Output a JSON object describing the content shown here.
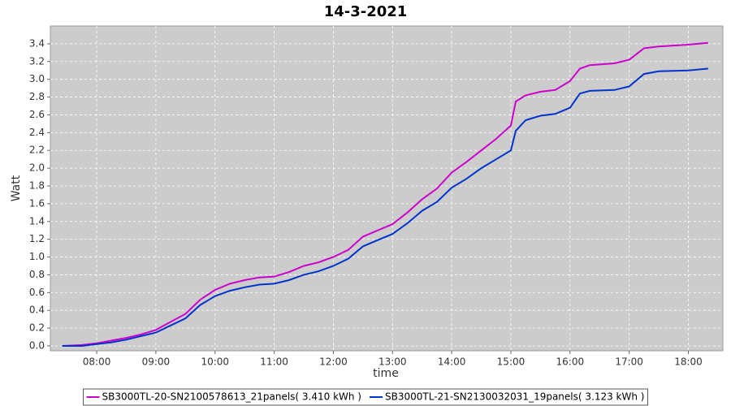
{
  "chart_data": {
    "type": "line",
    "title": "14-3-2021",
    "x_label": "time",
    "y_label": "Watt",
    "x": [
      "07:25",
      "07:45",
      "08:00",
      "08:15",
      "08:30",
      "08:45",
      "09:00",
      "09:15",
      "09:30",
      "09:45",
      "10:00",
      "10:15",
      "10:30",
      "10:45",
      "11:00",
      "11:15",
      "11:30",
      "11:45",
      "12:00",
      "12:15",
      "12:30",
      "12:45",
      "13:00",
      "13:15",
      "13:30",
      "13:45",
      "14:00",
      "14:15",
      "14:30",
      "14:45",
      "15:00",
      "15:05",
      "15:15",
      "15:30",
      "15:45",
      "16:00",
      "16:10",
      "16:20",
      "16:45",
      "17:00",
      "17:15",
      "17:30",
      "18:00",
      "18:20"
    ],
    "series": [
      {
        "name": "SB3000TL-20-SN2100578613_21panels( 3.410 kWh )",
        "color": "#cc00cc",
        "values": [
          0.0,
          0.01,
          0.03,
          0.06,
          0.09,
          0.13,
          0.18,
          0.27,
          0.36,
          0.52,
          0.63,
          0.7,
          0.74,
          0.77,
          0.78,
          0.83,
          0.9,
          0.94,
          1.0,
          1.08,
          1.23,
          1.3,
          1.37,
          1.5,
          1.65,
          1.77,
          1.95,
          2.07,
          2.2,
          2.33,
          2.48,
          2.75,
          2.82,
          2.86,
          2.88,
          2.98,
          3.12,
          3.16,
          3.18,
          3.22,
          3.35,
          3.37,
          3.39,
          3.41
        ]
      },
      {
        "name": "SB3000TL-21-SN2130032031_19panels( 3.123 kWh )",
        "color": "#0033cc",
        "values": [
          0.0,
          0.0,
          0.02,
          0.04,
          0.07,
          0.11,
          0.15,
          0.23,
          0.31,
          0.46,
          0.56,
          0.62,
          0.66,
          0.69,
          0.7,
          0.74,
          0.8,
          0.84,
          0.9,
          0.98,
          1.12,
          1.19,
          1.26,
          1.38,
          1.52,
          1.62,
          1.78,
          1.88,
          2.0,
          2.1,
          2.2,
          2.42,
          2.54,
          2.59,
          2.61,
          2.68,
          2.84,
          2.87,
          2.88,
          2.92,
          3.06,
          3.09,
          3.1,
          3.12
        ]
      }
    ],
    "xlim": [
      "07:13",
      "18:35"
    ],
    "xticks": [
      "08:00",
      "09:00",
      "10:00",
      "11:00",
      "12:00",
      "13:00",
      "14:00",
      "15:00",
      "16:00",
      "17:00",
      "18:00"
    ],
    "ylim": [
      -0.055,
      3.6
    ],
    "yticks": [
      {
        "value": 0,
        "label": "0.0"
      },
      {
        "value": 0.2,
        "label": "0.2"
      },
      {
        "value": 0.4,
        "label": "0.4"
      },
      {
        "value": 0.6,
        "label": "0.6"
      },
      {
        "value": 0.8,
        "label": "0.8"
      },
      {
        "value": 1,
        "label": "1.0"
      },
      {
        "value": 1.2,
        "label": "1.2"
      },
      {
        "value": 1.4,
        "label": "1.4"
      },
      {
        "value": 1.6,
        "label": "1.6"
      },
      {
        "value": 1.8,
        "label": "1.8"
      },
      {
        "value": 2,
        "label": "2.0"
      },
      {
        "value": 2.2,
        "label": "2.2"
      },
      {
        "value": 2.4,
        "label": "2.4"
      },
      {
        "value": 2.6,
        "label": "2.6"
      },
      {
        "value": 2.8,
        "label": "2.8"
      },
      {
        "value": 3,
        "label": "3.0"
      },
      {
        "value": 3.2,
        "label": "3.2"
      },
      {
        "value": 3.4,
        "label": "3.4"
      }
    ],
    "grid": true,
    "legend_position": "bottom",
    "plot_background": "#cccccc"
  }
}
